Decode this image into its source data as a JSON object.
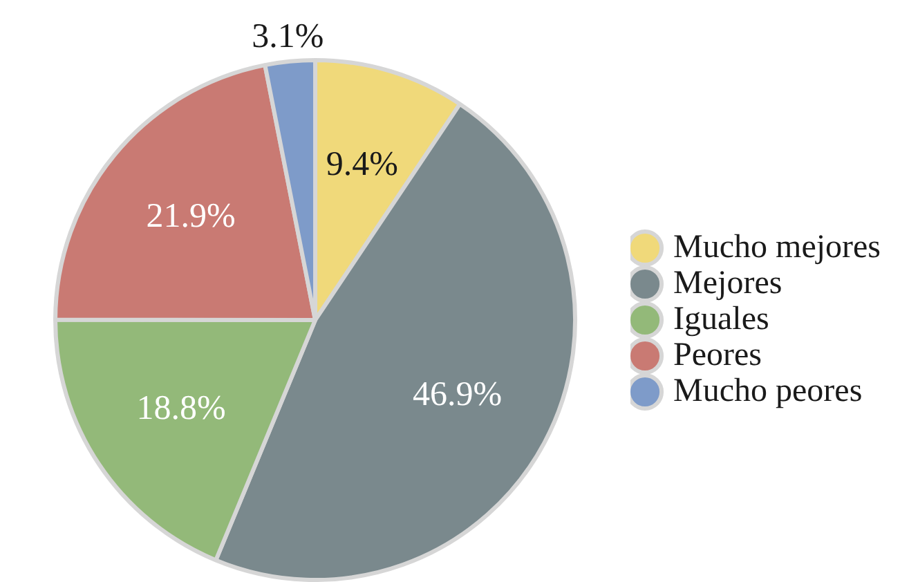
{
  "chart_data": {
    "type": "pie",
    "categories": [
      "Mucho mejores",
      "Mejores",
      "Iguales",
      "Peores",
      "Mucho peores"
    ],
    "values": [
      9.4,
      46.9,
      18.8,
      21.9,
      3.1
    ],
    "colors": [
      "#f0d97a",
      "#7a898d",
      "#93b979",
      "#c97a73",
      "#7e9bc9"
    ],
    "value_labels": [
      "9.4%",
      "46.9%",
      "18.8%",
      "21.9%",
      "3.1%"
    ],
    "legend": "right"
  }
}
